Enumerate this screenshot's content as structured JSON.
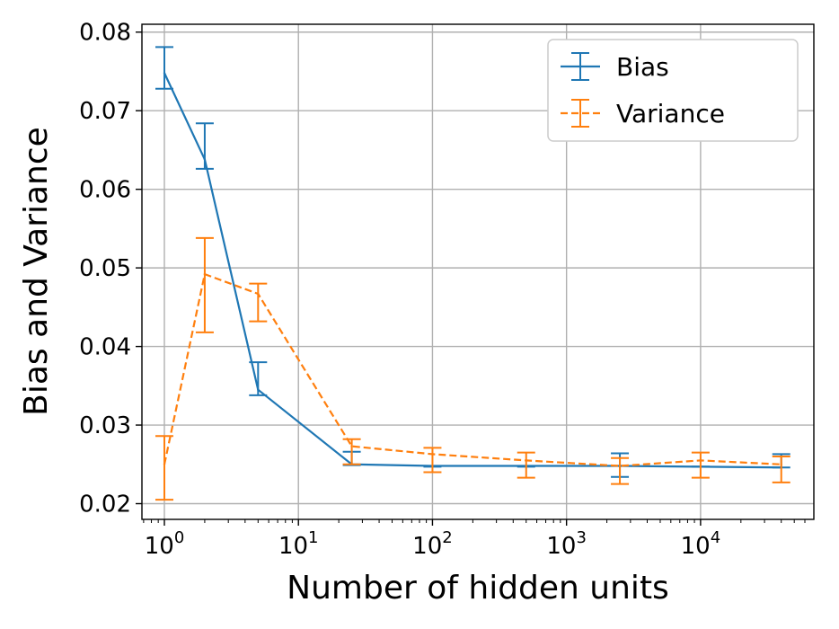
{
  "chart_data": {
    "type": "line",
    "title": "",
    "xlabel": "Number of hidden units",
    "ylabel": "Bias and Variance",
    "xscale": "log",
    "xlim": [
      0.68,
      70000
    ],
    "ylim": [
      0.018,
      0.081
    ],
    "grid": true,
    "legend_position": "top-right",
    "x_tick_values": [
      1,
      10,
      100,
      1000,
      10000
    ],
    "x_tick_labels": [
      {
        "base": "10",
        "exp": "0"
      },
      {
        "base": "10",
        "exp": "1"
      },
      {
        "base": "10",
        "exp": "2"
      },
      {
        "base": "10",
        "exp": "3"
      },
      {
        "base": "10",
        "exp": "4"
      }
    ],
    "y_tick_values": [
      0.02,
      0.03,
      0.04,
      0.05,
      0.06,
      0.07,
      0.08
    ],
    "y_tick_labels": [
      "0.02",
      "0.03",
      "0.04",
      "0.05",
      "0.06",
      "0.07",
      "0.08"
    ],
    "series": [
      {
        "name": "Bias",
        "color": "#1f77b4",
        "line_style": "solid",
        "x": [
          1,
          2,
          5,
          25,
          100,
          500,
          2500,
          10000,
          40000
        ],
        "y": [
          0.0748,
          0.0638,
          0.0345,
          0.025,
          0.0248,
          0.0248,
          0.0248,
          0.0247,
          0.0246
        ],
        "err_low": [
          0.0728,
          0.0626,
          0.0338,
          0.0249,
          0.0247,
          0.0247,
          0.0234,
          0.0247,
          0.0246
        ],
        "err_high": [
          0.0781,
          0.0684,
          0.038,
          0.0266,
          0.0248,
          0.0248,
          0.0264,
          0.0247,
          0.0263
        ]
      },
      {
        "name": "Variance",
        "color": "#ff7f0e",
        "line_style": "dashed",
        "x": [
          1,
          2,
          5,
          25,
          100,
          500,
          2500,
          10000,
          40000
        ],
        "y": [
          0.025,
          0.0492,
          0.0467,
          0.0273,
          0.0263,
          0.0255,
          0.0248,
          0.0255,
          0.025
        ],
        "err_low": [
          0.0205,
          0.0418,
          0.0432,
          0.025,
          0.024,
          0.0233,
          0.0225,
          0.0233,
          0.0227
        ],
        "err_high": [
          0.0286,
          0.0538,
          0.048,
          0.0282,
          0.0271,
          0.0265,
          0.0258,
          0.0265,
          0.026
        ]
      }
    ]
  }
}
